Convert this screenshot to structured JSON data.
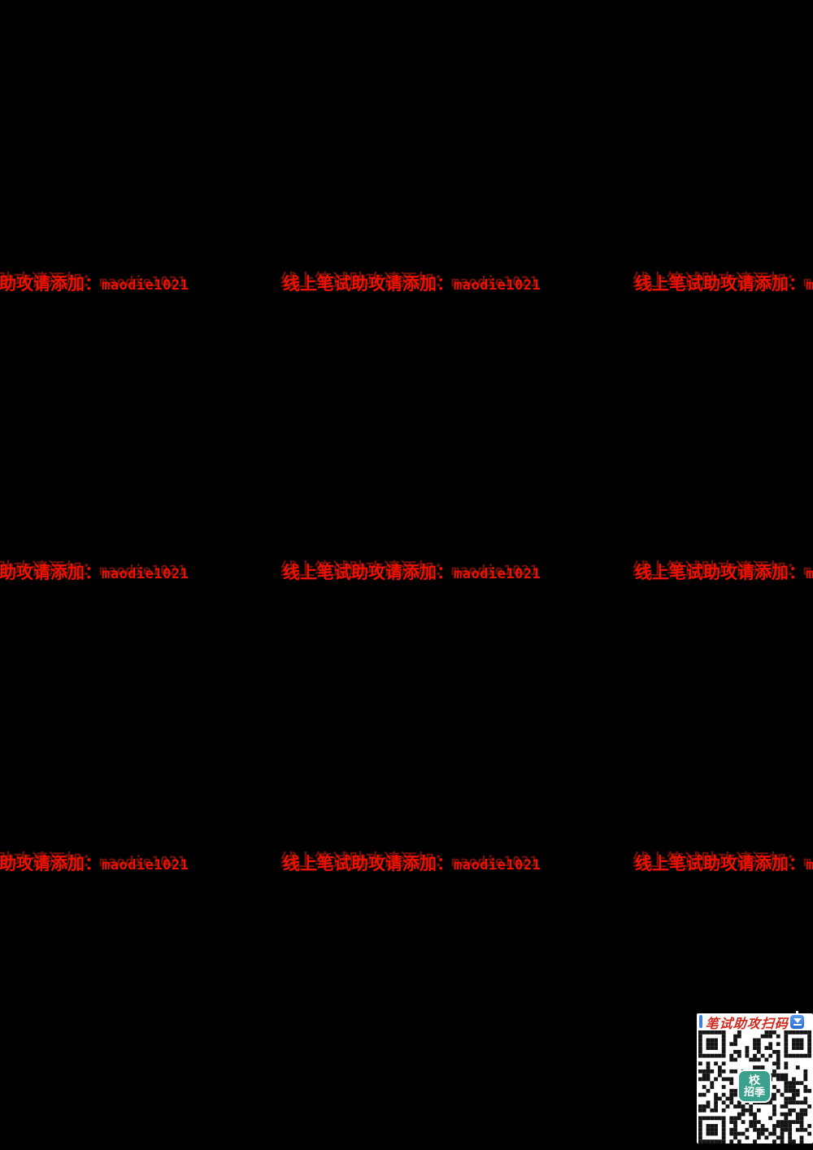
{
  "page": {
    "background": "#000000"
  },
  "watermark": {
    "cn": "线上笔试助攻请添加：",
    "code": "maodie1021",
    "color": "#f01000",
    "ghost_color": "#781208"
  },
  "qr_card": {
    "title": "笔试助攻扫码",
    "title_color": "#cf2a1e",
    "download_icon": "download-arrow-emoji",
    "icon_bg": "#2b6cd4",
    "qr_dark": "#141414",
    "qr_light": "#ffffff",
    "center_logo": {
      "line1": "校",
      "line2": "招季",
      "bg": "#3aa18c",
      "text_color": "#ffffff"
    }
  }
}
